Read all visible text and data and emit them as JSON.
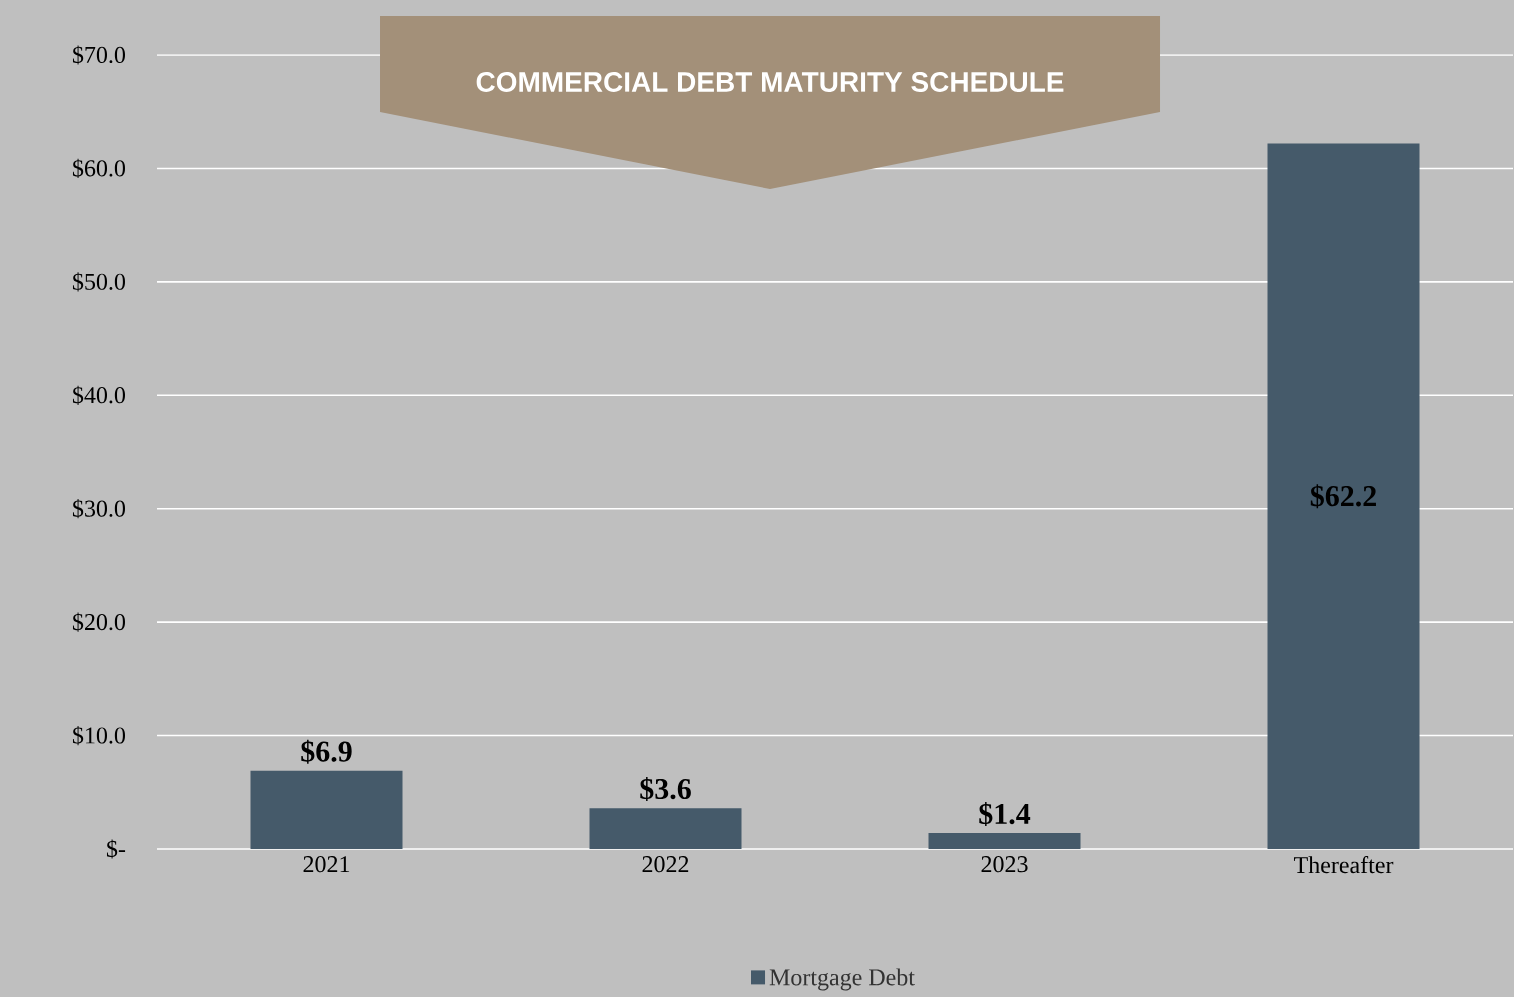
{
  "chart_data": {
    "type": "bar",
    "title": "COMMERCIAL DEBT MATURITY SCHEDULE",
    "categories": [
      "2021",
      "2022",
      "2023",
      "Thereafter"
    ],
    "series": [
      {
        "name": "Mortgage Debt",
        "color": "#455a6a",
        "values": [
          6.9,
          3.6,
          1.4,
          62.2
        ],
        "value_labels": [
          "$6.9",
          "$3.6",
          "$1.4",
          "$62.2"
        ]
      }
    ],
    "ylim": [
      0,
      70
    ],
    "yticks": [
      {
        "value": 0,
        "label": "$-"
      },
      {
        "value": 10,
        "label": "$10.0"
      },
      {
        "value": 20,
        "label": "$20.0"
      },
      {
        "value": 30,
        "label": "$30.0"
      },
      {
        "value": 40,
        "label": "$40.0"
      },
      {
        "value": 50,
        "label": "$50.0"
      },
      {
        "value": 60,
        "label": "$60.0"
      },
      {
        "value": 70,
        "label": "$70.0"
      }
    ],
    "grid": "y",
    "legend": "bottom"
  }
}
